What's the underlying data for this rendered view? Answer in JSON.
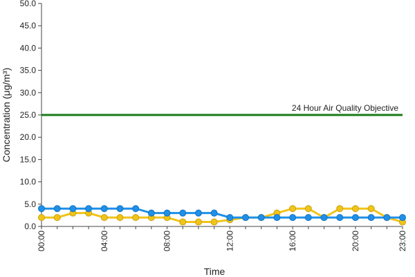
{
  "chart_data": {
    "type": "line",
    "x_label": "Time",
    "y_label": "Concentration (μg/m³)",
    "categories": [
      "00:00",
      null,
      null,
      null,
      "04:00",
      null,
      null,
      null,
      "08:00",
      null,
      null,
      null,
      "12:00",
      null,
      null,
      null,
      "16:00",
      null,
      null,
      null,
      "20:00",
      null,
      null,
      "23:00"
    ],
    "series": [
      {
        "color": "#1e90e8",
        "values": [
          4,
          4,
          4,
          4,
          4,
          4,
          4,
          3,
          3,
          3,
          3,
          3,
          2,
          2,
          2,
          2,
          2,
          2,
          2,
          2,
          2,
          2,
          2,
          2
        ]
      },
      {
        "color": "#f0c419",
        "values": [
          2,
          2,
          3,
          3,
          2,
          2,
          2,
          2,
          2,
          1,
          1,
          1,
          1.5,
          2,
          2,
          3,
          4,
          4,
          2,
          4,
          4,
          4,
          2,
          1
        ]
      }
    ],
    "objective": {
      "label": "24 Hour Air Quality Objective",
      "value": 25,
      "color": "#1a7a1a"
    },
    "ylim": [
      0,
      50
    ],
    "yticks": [
      {
        "value": 0,
        "label": "0.0"
      },
      {
        "value": 5,
        "label": "5.0"
      },
      {
        "value": 10,
        "label": "10.0"
      },
      {
        "value": 15,
        "label": "15.0"
      },
      {
        "value": 20,
        "label": "20.0"
      },
      {
        "value": 25,
        "label": "25.0"
      },
      {
        "value": 30,
        "label": "30.0"
      },
      {
        "value": 35,
        "label": "35.0"
      },
      {
        "value": 40,
        "label": "40.0"
      },
      {
        "value": 45,
        "label": "45.0"
      },
      {
        "value": 50,
        "label": "50.0"
      }
    ]
  }
}
